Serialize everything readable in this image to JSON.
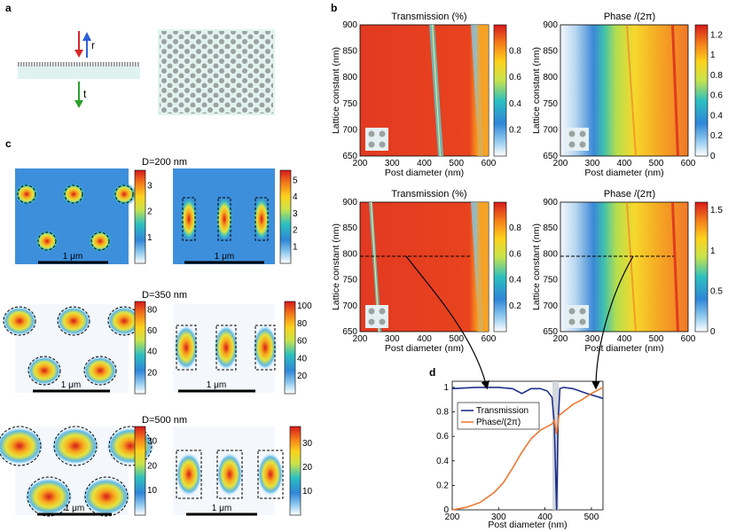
{
  "panel_labels": {
    "a": "a",
    "b": "b",
    "c": "c",
    "d": "d"
  },
  "panel_a": {
    "r_label": "r",
    "t_label": "t"
  },
  "panel_b": {
    "transmission_title": "Transmission (%)",
    "phase_title": "Phase /(2π)",
    "xlabel": "Post diameter (nm)",
    "ylabel": "Lattice constant (nm)",
    "x_ticks": [
      "200",
      "300",
      "400",
      "500",
      "600"
    ],
    "y_ticks": [
      "650",
      "700",
      "750",
      "800",
      "850",
      "900"
    ],
    "trans_cb_ticks": [
      "0.2",
      "0.4",
      "0.6",
      "0.8"
    ],
    "phase_top_cb_ticks": [
      "0",
      "0.2",
      "0.4",
      "0.6",
      "0.8",
      "1",
      "1.2"
    ],
    "phase_bot_cb_ticks": [
      "0",
      "0.5",
      "1",
      "1.5"
    ]
  },
  "panel_c": {
    "rows": [
      {
        "label": "D=200 nm",
        "cb1": [
          "1",
          "2",
          "3"
        ],
        "cb2": [
          "1",
          "2",
          "3",
          "4",
          "5"
        ]
      },
      {
        "label": "D=350 nm",
        "cb1": [
          "20",
          "40",
          "60",
          "80"
        ],
        "cb2": [
          "20",
          "40",
          "60",
          "80",
          "100"
        ]
      },
      {
        "label": "D=500 nm",
        "cb1": [
          "10",
          "20",
          "30"
        ],
        "cb2": [
          "10",
          "20",
          "30"
        ]
      }
    ],
    "scale_label": "1 μm"
  },
  "panel_d": {
    "xlabel": "Post diameter (nm)",
    "x_ticks": [
      "200",
      "300",
      "400",
      "500"
    ],
    "y_ticks": [
      "0",
      "0.2",
      "0.4",
      "0.6",
      "0.8",
      "1"
    ],
    "legend": [
      {
        "name": "Transmission",
        "color": "#1f2f8a"
      },
      {
        "name": "Phase/(2π)",
        "color": "#f07832"
      }
    ]
  },
  "chart_data": [
    {
      "type": "line",
      "title": "",
      "xlabel": "Post diameter (nm)",
      "ylabel": "",
      "xlim": [
        200,
        525
      ],
      "ylim": [
        0,
        1.05
      ],
      "series": [
        {
          "name": "Transmission",
          "x": [
            200,
            250,
            300,
            330,
            350,
            370,
            390,
            405,
            415,
            420,
            425,
            428,
            432,
            440,
            460,
            490,
            525
          ],
          "y": [
            0.99,
            1.0,
            1.0,
            0.99,
            0.95,
            0.99,
            0.99,
            0.97,
            0.92,
            0.7,
            0.0,
            0.7,
            0.99,
            1.0,
            0.99,
            0.95,
            0.91
          ]
        },
        {
          "name": "Phase/(2π)",
          "x": [
            200,
            230,
            260,
            290,
            310,
            330,
            350,
            370,
            390,
            405,
            415,
            420,
            425,
            430,
            440,
            460,
            480,
            500,
            525
          ],
          "y": [
            0.0,
            0.02,
            0.06,
            0.14,
            0.22,
            0.34,
            0.47,
            0.58,
            0.65,
            0.68,
            0.7,
            0.73,
            0.62,
            0.77,
            0.8,
            0.86,
            0.9,
            0.95,
            1.0
          ]
        }
      ]
    },
    {
      "type": "heatmap",
      "title": "Transmission (%)",
      "xlabel": "Post diameter (nm)",
      "ylabel": "Lattice constant (nm)",
      "xlim": [
        200,
        600
      ],
      "ylim": [
        650,
        900
      ],
      "clim": [
        0,
        1
      ]
    },
    {
      "type": "heatmap",
      "title": "Phase /(2π)",
      "xlabel": "Post diameter (nm)",
      "ylabel": "Lattice constant (nm)",
      "xlim": [
        200,
        600
      ],
      "ylim": [
        650,
        900
      ],
      "clim": [
        0,
        1.3
      ]
    },
    {
      "type": "heatmap",
      "title": "Transmission (%)",
      "xlabel": "Post diameter (nm)",
      "ylabel": "Lattice constant (nm)",
      "xlim": [
        200,
        600
      ],
      "ylim": [
        650,
        900
      ],
      "clim": [
        0,
        1
      ]
    },
    {
      "type": "heatmap",
      "title": "Phase /(2π)",
      "xlabel": "Post diameter (nm)",
      "ylabel": "Lattice constant (nm)",
      "xlim": [
        200,
        600
      ],
      "ylim": [
        650,
        900
      ],
      "clim": [
        0,
        1.6
      ]
    }
  ]
}
